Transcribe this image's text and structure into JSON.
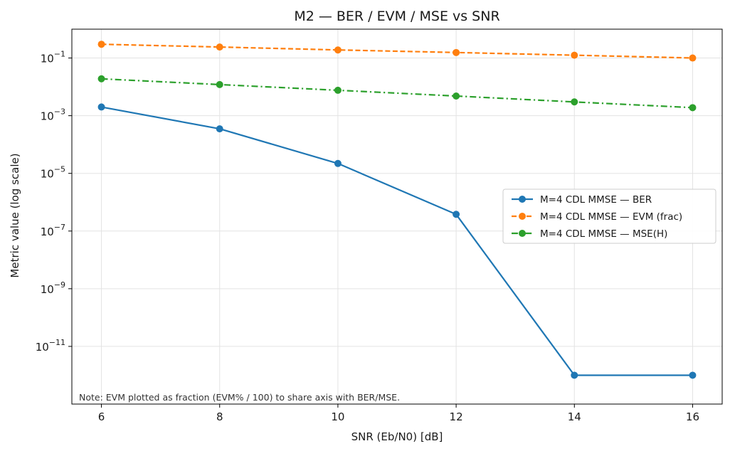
{
  "chart_data": {
    "type": "line",
    "title": "M2 — BER / EVM / MSE vs SNR",
    "xlabel": "SNR (Eb/N0) [dB]",
    "ylabel": "Metric value (log scale)",
    "yscale": "log",
    "xlim": [
      5.5,
      16.5
    ],
    "ylim": [
      1e-13,
      1
    ],
    "x_ticks": [
      6,
      8,
      10,
      12,
      14,
      16
    ],
    "y_tick_exponents": [
      -1,
      -3,
      -5,
      -7,
      -9,
      -11
    ],
    "grid": true,
    "legend_position": "center-right",
    "annotation": "Note: EVM plotted as fraction (EVM% / 100) to share axis with BER/MSE.",
    "x": [
      6,
      8,
      10,
      12,
      14,
      16
    ],
    "series": [
      {
        "name": "M=4 CDL MMSE — BER",
        "color": "#1f77b4",
        "line_style": "solid",
        "marker": "circle",
        "values": [
          0.002,
          0.00035,
          2.2e-05,
          3.8e-07,
          1e-12,
          1e-12
        ]
      },
      {
        "name": "M=4 CDL MMSE — EVM (frac)",
        "color": "#ff7f0e",
        "line_style": "dashed",
        "marker": "circle",
        "values": [
          0.3,
          0.24,
          0.19,
          0.155,
          0.125,
          0.1
        ]
      },
      {
        "name": "M=4 CDL MMSE — MSE(H)",
        "color": "#2ca02c",
        "line_style": "dashdot",
        "marker": "circle",
        "values": [
          0.019,
          0.012,
          0.0076,
          0.0048,
          0.003,
          0.0019
        ]
      }
    ]
  }
}
